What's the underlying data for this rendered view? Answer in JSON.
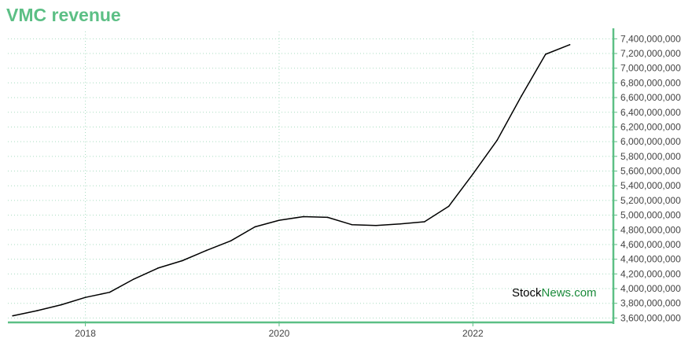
{
  "colors": {
    "accent": "#5cbf85",
    "line": "#000000",
    "grid": "#a8dcc0"
  },
  "chart_data": {
    "type": "line",
    "title": "VMC revenue",
    "xlabel": "",
    "ylabel": "",
    "x": [
      2017.25,
      2017.5,
      2017.75,
      2018.0,
      2018.25,
      2018.5,
      2018.75,
      2019.0,
      2019.25,
      2019.5,
      2019.75,
      2020.0,
      2020.25,
      2020.5,
      2020.75,
      2021.0,
      2021.25,
      2021.5,
      2021.75,
      2022.0,
      2022.25,
      2022.5,
      2022.75,
      2023.0
    ],
    "series": [
      {
        "name": "",
        "values": [
          3630000000,
          3700000000,
          3780000000,
          3880000000,
          3950000000,
          4130000000,
          4280000000,
          4380000000,
          4520000000,
          4650000000,
          4840000000,
          4930000000,
          4980000000,
          4970000000,
          4870000000,
          4860000000,
          4880000000,
          4910000000,
          5120000000,
          5560000000,
          6020000000,
          6620000000,
          7190000000,
          7320000000
        ]
      }
    ],
    "xlim": [
      2017.2,
      2023.45
    ],
    "ylim": [
      3540000000,
      7500000000
    ],
    "x_ticks": [
      2018,
      2020,
      2022
    ],
    "x_tick_labels": [
      "2018",
      "2020",
      "2022"
    ],
    "y_ticks": [
      3600000000,
      3800000000,
      4000000000,
      4200000000,
      4400000000,
      4600000000,
      4800000000,
      5000000000,
      5200000000,
      5400000000,
      5600000000,
      5800000000,
      6000000000,
      6200000000,
      6400000000,
      6600000000,
      6800000000,
      7000000000,
      7200000000,
      7400000000
    ],
    "y_tick_labels": [
      "3,600,000,000",
      "3,800,000,000",
      "4,000,000,000",
      "4,200,000,000",
      "4,400,000,000",
      "4,600,000,000",
      "4,800,000,000",
      "5,000,000,000",
      "5,200,000,000",
      "5,400,000,000",
      "5,600,000,000",
      "5,800,000,000",
      "6,000,000,000",
      "6,200,000,000",
      "6,400,000,000",
      "6,600,000,000",
      "6,800,000,000",
      "7,000,000,000",
      "7,200,000,000",
      "7,400,000,000"
    ],
    "y_axis_position": "right",
    "grid": true
  },
  "watermark": {
    "part1": "Stock",
    "part2": "News.com"
  }
}
